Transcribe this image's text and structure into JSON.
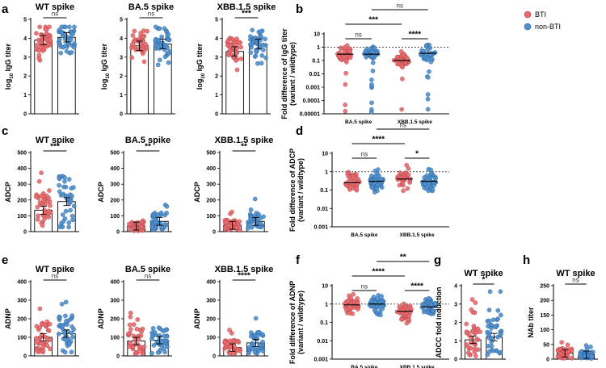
{
  "figure": {
    "panel_labels": [
      "a",
      "b",
      "c",
      "d",
      "e",
      "f",
      "g",
      "h"
    ],
    "colors": {
      "BTI": "#e56b6f",
      "non_BTI": "#4f90cf"
    },
    "legend": {
      "items": [
        "BTI",
        "non-BTI"
      ]
    }
  },
  "chart_data": [
    {
      "id": "a_wt",
      "type": "bar",
      "panel": "a",
      "title": "WT spike",
      "ylabel": "log10 IgG titer",
      "ylabel_main": "log",
      "ylabel_sub": "10",
      "ylabel_rest": " IgG titer",
      "scale": "linear",
      "ylim": [
        0,
        5
      ],
      "yticks": [
        "0",
        "1",
        "2",
        "3",
        "4",
        "5"
      ],
      "categories": [
        "BTI",
        "non-BTI"
      ],
      "values": [
        3.9,
        4.05
      ],
      "sig": "ns"
    },
    {
      "id": "a_ba5",
      "type": "bar",
      "panel": "a",
      "title": "BA.5 spike",
      "ylabel": "log10 IgG titer",
      "ylabel_main": "log",
      "ylabel_sub": "10",
      "ylabel_rest": " IgG titer",
      "scale": "linear",
      "ylim": [
        0,
        5
      ],
      "yticks": [
        "0",
        "1",
        "2",
        "3",
        "4",
        "5"
      ],
      "categories": [
        "BTI",
        "non-BTI"
      ],
      "values": [
        3.6,
        3.7
      ],
      "sig": "ns"
    },
    {
      "id": "a_xbb",
      "type": "bar",
      "panel": "a",
      "title": "XBB.1.5 spike",
      "ylabel": "log10 IgG titer",
      "ylabel_main": "log",
      "ylabel_sub": "10",
      "ylabel_rest": " IgG titer",
      "scale": "linear",
      "ylim": [
        0,
        5
      ],
      "yticks": [
        "0",
        "1",
        "2",
        "3",
        "4",
        "5"
      ],
      "categories": [
        "BTI",
        "non-BTI"
      ],
      "values": [
        3.3,
        3.7
      ],
      "sig": "***"
    },
    {
      "id": "b",
      "type": "scatter",
      "panel": "b",
      "ylabel": "Fold difference of IgG titer",
      "ylabel2": "(variant / wildtype)",
      "scale": "log",
      "ylim": [
        1e-05,
        10
      ],
      "yticks": [
        "10",
        "1",
        "0.1",
        "0.01",
        "0.001",
        "0.0001",
        "0.00001"
      ],
      "reference_line": 1,
      "groups": [
        "BA.5 spike",
        "XBB.1.5 spike"
      ],
      "series": [
        {
          "name": "BTI",
          "medians": [
            0.3,
            0.1
          ]
        },
        {
          "name": "non-BTI",
          "medians": [
            0.3,
            0.35
          ]
        }
      ],
      "comparisons": [
        {
          "label": "ns",
          "between": "BA.5 BTI vs BA.5 non-BTI"
        },
        {
          "label": "****",
          "between": "XBB BTI vs XBB non-BTI"
        },
        {
          "label": "***",
          "between": "BA.5 BTI vs XBB BTI"
        },
        {
          "label": "ns",
          "between": "BA.5 non-BTI vs XBB non-BTI"
        }
      ]
    },
    {
      "id": "c_wt",
      "type": "bar",
      "panel": "c",
      "title": "WT spike",
      "ylabel": "ADCP",
      "scale": "linear",
      "ylim": [
        0,
        500
      ],
      "yticks": [
        "0",
        "100",
        "200",
        "300",
        "400",
        "500"
      ],
      "categories": [
        "BTI",
        "non-BTI"
      ],
      "values": [
        135,
        190
      ],
      "sig": "***"
    },
    {
      "id": "c_ba5",
      "type": "bar",
      "panel": "c",
      "title": "BA.5 spike",
      "ylabel": "ADCP",
      "scale": "linear",
      "ylim": [
        0,
        500
      ],
      "yticks": [
        "0",
        "100",
        "200",
        "300",
        "400",
        "500"
      ],
      "categories": [
        "BTI",
        "non-BTI"
      ],
      "values": [
        35,
        65
      ],
      "sig": "**"
    },
    {
      "id": "c_xbb",
      "type": "bar",
      "panel": "c",
      "title": "XBB.1.5 spike",
      "ylabel": "ADCP",
      "scale": "linear",
      "ylim": [
        0,
        500
      ],
      "yticks": [
        "0",
        "100",
        "200",
        "300",
        "400",
        "500"
      ],
      "categories": [
        "BTI",
        "non-BTI"
      ],
      "values": [
        40,
        65
      ],
      "sig": "**"
    },
    {
      "id": "d",
      "type": "scatter",
      "panel": "d",
      "ylabel": "Fold difference of ADCP",
      "ylabel2": "(variant / wildtype)",
      "scale": "log",
      "ylim": [
        0.001,
        10
      ],
      "yticks": [
        "10",
        "1",
        "0.1",
        "0.01",
        "0.001"
      ],
      "reference_line": 1,
      "groups": [
        "BA.5 spike",
        "XBB.1.5 spike"
      ],
      "series": [
        {
          "name": "BTI",
          "medians": [
            0.25,
            0.4
          ]
        },
        {
          "name": "non-BTI",
          "medians": [
            0.3,
            0.3
          ]
        }
      ],
      "comparisons": [
        {
          "label": "ns",
          "between": "BA.5 BTI vs BA.5 non-BTI"
        },
        {
          "label": "*",
          "between": "XBB BTI vs XBB non-BTI"
        },
        {
          "label": "****",
          "between": "BA.5 BTI vs XBB BTI"
        },
        {
          "label": "ns",
          "between": "BA.5 non-BTI vs XBB non-BTI"
        }
      ]
    },
    {
      "id": "e_wt",
      "type": "bar",
      "panel": "e",
      "title": "WT spike",
      "ylabel": "ADNP",
      "scale": "linear",
      "ylim": [
        0,
        400
      ],
      "yticks": [
        "0",
        "100",
        "200",
        "300",
        "400"
      ],
      "categories": [
        "BTI",
        "non-BTI"
      ],
      "values": [
        100,
        120
      ],
      "sig": "ns"
    },
    {
      "id": "e_ba5",
      "type": "bar",
      "panel": "e",
      "title": "BA.5 spike",
      "ylabel": "ADNP",
      "scale": "linear",
      "ylim": [
        0,
        400
      ],
      "yticks": [
        "0",
        "100",
        "200",
        "300",
        "400"
      ],
      "categories": [
        "BTI",
        "non-BTI"
      ],
      "values": [
        80,
        85
      ],
      "sig": "ns"
    },
    {
      "id": "e_xbb",
      "type": "bar",
      "panel": "e",
      "title": "XBB.1.5 spike",
      "ylabel": "ADNP",
      "scale": "linear",
      "ylim": [
        0,
        400
      ],
      "yticks": [
        "0",
        "100",
        "200",
        "300",
        "400"
      ],
      "categories": [
        "BTI",
        "non-BTI"
      ],
      "values": [
        45,
        70
      ],
      "sig": "****"
    },
    {
      "id": "f",
      "type": "scatter",
      "panel": "f",
      "ylabel": "Fold difference of ADNP",
      "ylabel2": "(variant / wildtype)",
      "scale": "log",
      "ylim": [
        0.001,
        10
      ],
      "yticks": [
        "10",
        "1",
        "0.1",
        "0.01",
        "0.001"
      ],
      "reference_line": 1,
      "groups": [
        "BA.5 spike",
        "XBB.1.5 spike"
      ],
      "series": [
        {
          "name": "BTI",
          "medians": [
            0.9,
            0.4
          ]
        },
        {
          "name": "non-BTI",
          "medians": [
            1.0,
            0.7
          ]
        }
      ],
      "comparisons": [
        {
          "label": "ns",
          "between": "BA.5 BTI vs BA.5 non-BTI"
        },
        {
          "label": "****",
          "between": "XBB BTI vs XBB non-BTI"
        },
        {
          "label": "****",
          "between": "BA.5 BTI vs XBB BTI"
        },
        {
          "label": "**",
          "between": "BA.5 non-BTI vs XBB non-BTI"
        }
      ]
    },
    {
      "id": "g",
      "type": "bar",
      "panel": "g",
      "title": "WT spike",
      "ylabel": "ADCC fold induction",
      "scale": "linear",
      "ylim": [
        0,
        4
      ],
      "yticks": [
        "0",
        "1",
        "2",
        "3",
        "4"
      ],
      "categories": [
        "BTI",
        "non-BTI"
      ],
      "values": [
        1.05,
        1.2
      ],
      "sig": "*"
    },
    {
      "id": "h",
      "type": "bar",
      "panel": "h",
      "title": "WT spike",
      "ylabel": "NAb titer",
      "scale": "linear",
      "ylim": [
        0,
        250
      ],
      "yticks": [
        "0",
        "50",
        "100",
        "150",
        "200",
        "250"
      ],
      "categories": [
        "BTI",
        "non-BTI"
      ],
      "values": [
        20,
        15
      ],
      "sig": "ns"
    }
  ]
}
